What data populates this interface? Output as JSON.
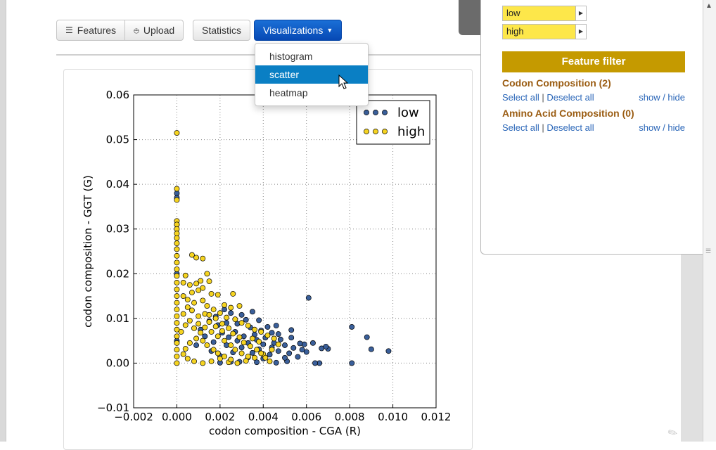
{
  "toolbar": {
    "features_label": "Features",
    "upload_label": "Upload",
    "statistics_label": "Statistics",
    "visualizations_label": "Visualizations"
  },
  "dropdown": {
    "items": [
      {
        "label": "histogram",
        "active": false
      },
      {
        "label": "scatter",
        "active": true
      },
      {
        "label": "heatmap",
        "active": false
      }
    ]
  },
  "side_panel": {
    "classes": [
      {
        "label": "low",
        "color": "#fde74a"
      },
      {
        "label": "high",
        "color": "#fde74a"
      }
    ],
    "filter_title": "Feature filter",
    "groups": [
      {
        "title": "Codon Composition (2)",
        "select_all": "Select all",
        "sep": "|",
        "deselect_all": "Deselect all",
        "show_hide": "show / hide"
      },
      {
        "title": "Amino Acid Composition (0)",
        "select_all": "Select all",
        "sep": "|",
        "deselect_all": "Deselect all",
        "show_hide": "show / hide"
      }
    ]
  },
  "chart_data": {
    "type": "scatter",
    "xlabel": "codon composition - CGA (R)",
    "ylabel": "codon composition - GGT (G)",
    "xlim": [
      -0.002,
      0.012
    ],
    "ylim": [
      -0.01,
      0.06
    ],
    "x_ticks": [
      -0.002,
      0.0,
      0.002,
      0.004,
      0.006,
      0.008,
      0.01,
      0.012
    ],
    "x_tick_labels": [
      "−0.002",
      "0.000",
      "0.002",
      "0.004",
      "0.006",
      "0.008",
      "0.010",
      "0.012"
    ],
    "y_ticks": [
      -0.01,
      0.0,
      0.01,
      0.02,
      0.03,
      0.04,
      0.05,
      0.06
    ],
    "y_tick_labels": [
      "−0.01",
      "0.00",
      "0.01",
      "0.02",
      "0.03",
      "0.04",
      "0.05",
      "0.06"
    ],
    "grid": true,
    "legend_position": "top-right",
    "series": [
      {
        "name": "low",
        "color": "#3a5f9a",
        "points": [
          [
            0.0098,
            0.0027
          ],
          [
            0.009,
            0.0031
          ],
          [
            0.0088,
            0.0058
          ],
          [
            0.0081,
            0.0081
          ],
          [
            0.0081,
            0.0
          ],
          [
            0.007,
            0.0032
          ],
          [
            0.0069,
            0.0037
          ],
          [
            0.0067,
            0.0033
          ],
          [
            0.0066,
            0.0
          ],
          [
            0.0064,
            0.0
          ],
          [
            0.0063,
            0.0045
          ],
          [
            0.0061,
            0.0146
          ],
          [
            0.006,
            0.0025
          ],
          [
            0.0059,
            0.0042
          ],
          [
            0.0058,
            0.003
          ],
          [
            0.0057,
            0.0044
          ],
          [
            0.0056,
            0.0014
          ],
          [
            0.0054,
            0.0034
          ],
          [
            0.0053,
            0.0074
          ],
          [
            0.0053,
            0.0057
          ],
          [
            0.0052,
            0.0022
          ],
          [
            0.0051,
            0.0004
          ],
          [
            0.005,
            0.004
          ],
          [
            0.005,
            0.0012
          ],
          [
            0.0048,
            0.0053
          ],
          [
            0.0047,
            0.0065
          ],
          [
            0.0047,
            0.0027
          ],
          [
            0.0046,
            0.0084
          ],
          [
            0.0046,
            0.0001
          ],
          [
            0.0045,
            0.0045
          ],
          [
            0.0044,
            0.0068
          ],
          [
            0.0044,
            0.0035
          ],
          [
            0.0043,
            0.0019
          ],
          [
            0.0042,
            0.0081
          ],
          [
            0.0041,
            0.0057
          ],
          [
            0.004,
            0.0042
          ],
          [
            0.004,
            0.001
          ],
          [
            0.0039,
            0.0073
          ],
          [
            0.0038,
            0.0096
          ],
          [
            0.0038,
            0.0031
          ],
          [
            0.0037,
            0.0052
          ],
          [
            0.0037,
            0.0002
          ],
          [
            0.0036,
            0.0064
          ],
          [
            0.0035,
            0.0115
          ],
          [
            0.0035,
            0.0023
          ],
          [
            0.0034,
            0.008
          ],
          [
            0.0033,
            0.0045
          ],
          [
            0.0033,
            0.0013
          ],
          [
            0.0032,
            0.0097
          ],
          [
            0.0031,
            0.006
          ],
          [
            0.003,
            0.0108
          ],
          [
            0.003,
            0.0035
          ],
          [
            0.0029,
            0.0003
          ],
          [
            0.0028,
            0.0088
          ],
          [
            0.0028,
            0.005
          ],
          [
            0.0027,
            0.007
          ],
          [
            0.0026,
            0.0024
          ],
          [
            0.0025,
            0.0112
          ],
          [
            0.0025,
            0.0003
          ],
          [
            0.0024,
            0.0058
          ],
          [
            0.0023,
            0.009
          ],
          [
            0.0023,
            0.004
          ],
          [
            0.0022,
            0.012
          ],
          [
            0.0021,
            0.0068
          ],
          [
            0.002,
            0.0016
          ],
          [
            0.002,
            0.0001
          ],
          [
            0.0019,
            0.0085
          ],
          [
            0.0018,
            0.0104
          ],
          [
            0.0017,
            0.0047
          ],
          [
            0.0016,
            0.0027
          ],
          [
            0.0015,
            0.0094
          ],
          [
            0.0013,
            0.006
          ],
          [
            0.0011,
            0.0075
          ],
          [
            0.0009,
            0.004
          ],
          [
            0.0,
            0.038
          ],
          [
            0.0,
            0.037
          ],
          [
            0.0,
            0.031
          ],
          [
            0.0,
            0.005
          ],
          [
            0.0,
            0.02
          ]
        ]
      },
      {
        "name": "high",
        "color": "#f5d320",
        "points": [
          [
            0.0,
            0.0515
          ],
          [
            0.0,
            0.039
          ],
          [
            0.0,
            0.0365
          ],
          [
            0.0,
            0.0318
          ],
          [
            0.0,
            0.031
          ],
          [
            0.0,
            0.03
          ],
          [
            0.0,
            0.029
          ],
          [
            0.0,
            0.028
          ],
          [
            0.0,
            0.0268
          ],
          [
            0.0,
            0.0255
          ],
          [
            0.0,
            0.024
          ],
          [
            0.0,
            0.0225
          ],
          [
            0.0,
            0.021
          ],
          [
            0.0,
            0.0195
          ],
          [
            0.0,
            0.018
          ],
          [
            0.0,
            0.0165
          ],
          [
            0.0,
            0.015
          ],
          [
            0.0,
            0.0135
          ],
          [
            0.0,
            0.012
          ],
          [
            0.0,
            0.0105
          ],
          [
            0.0,
            0.009
          ],
          [
            0.0,
            0.0075
          ],
          [
            0.0,
            0.006
          ],
          [
            0.0,
            0.0045
          ],
          [
            0.0,
            0.003
          ],
          [
            0.0,
            0.0015
          ],
          [
            0.0,
            0.0
          ],
          [
            0.0007,
            0.0242
          ],
          [
            0.0009,
            0.0236
          ],
          [
            0.0012,
            0.0234
          ],
          [
            0.0014,
            0.02
          ],
          [
            0.0011,
            0.0184
          ],
          [
            0.0009,
            0.0178
          ],
          [
            0.0004,
            0.0196
          ],
          [
            0.0003,
            0.018
          ],
          [
            0.0006,
            0.0175
          ],
          [
            0.0015,
            0.0183
          ],
          [
            0.0012,
            0.0168
          ],
          [
            0.0016,
            0.0155
          ],
          [
            0.0019,
            0.0153
          ],
          [
            0.0026,
            0.0155
          ],
          [
            0.0022,
            0.013
          ],
          [
            0.0025,
            0.0124
          ],
          [
            0.0029,
            0.0128
          ],
          [
            0.001,
            0.0163
          ],
          [
            0.0007,
            0.0158
          ],
          [
            0.0003,
            0.015
          ],
          [
            0.0005,
            0.0142
          ],
          [
            0.0008,
            0.0135
          ],
          [
            0.0012,
            0.014
          ],
          [
            0.0014,
            0.0128
          ],
          [
            0.0017,
            0.012
          ],
          [
            0.002,
            0.0112
          ],
          [
            0.0023,
            0.0102
          ],
          [
            0.0027,
            0.0098
          ],
          [
            0.003,
            0.009
          ],
          [
            0.0033,
            0.0084
          ],
          [
            0.0036,
            0.0075
          ],
          [
            0.0039,
            0.007
          ],
          [
            0.0042,
            0.0062
          ],
          [
            0.0045,
            0.0055
          ],
          [
            0.0047,
            0.0042
          ],
          [
            0.0044,
            0.003
          ],
          [
            0.004,
            0.002
          ],
          [
            0.0036,
            0.0012
          ],
          [
            0.0032,
            0.0005
          ],
          [
            0.0028,
            0.0
          ],
          [
            0.0024,
            0.0002
          ],
          [
            0.002,
            0.001
          ],
          [
            0.0016,
            0.0004
          ],
          [
            0.0012,
            0.0
          ],
          [
            0.0008,
            0.0004
          ],
          [
            0.0005,
            0.001
          ],
          [
            0.0003,
            0.002
          ],
          [
            0.0004,
            0.0032
          ],
          [
            0.0006,
            0.0045
          ],
          [
            0.0009,
            0.0055
          ],
          [
            0.0011,
            0.0068
          ],
          [
            0.0013,
            0.008
          ],
          [
            0.0015,
            0.0092
          ],
          [
            0.0018,
            0.01
          ],
          [
            0.0021,
            0.0088
          ],
          [
            0.0024,
            0.0078
          ],
          [
            0.0026,
            0.0066
          ],
          [
            0.0029,
            0.0058
          ],
          [
            0.0031,
            0.0046
          ],
          [
            0.0034,
            0.0038
          ],
          [
            0.0037,
            0.003
          ],
          [
            0.0039,
            0.0022
          ],
          [
            0.0041,
            0.0012
          ],
          [
            0.0043,
            0.0004
          ],
          [
            0.0007,
            0.0118
          ],
          [
            0.001,
            0.0105
          ],
          [
            0.0013,
            0.011
          ],
          [
            0.0016,
            0.007
          ],
          [
            0.0019,
            0.006
          ],
          [
            0.0022,
            0.005
          ],
          [
            0.0025,
            0.004
          ],
          [
            0.0027,
            0.003
          ],
          [
            0.003,
            0.0022
          ],
          [
            0.0033,
            0.0015
          ],
          [
            0.0002,
            0.007
          ],
          [
            0.0004,
            0.0085
          ],
          [
            0.0006,
            0.0095
          ],
          [
            0.0008,
            0.0078
          ],
          [
            0.001,
            0.0088
          ],
          [
            0.0012,
            0.005
          ],
          [
            0.0014,
            0.004
          ],
          [
            0.0017,
            0.003
          ],
          [
            0.0019,
            0.0022
          ],
          [
            0.0022,
            0.0015
          ],
          [
            0.0025,
            0.0008
          ],
          [
            0.0003,
            0.011
          ],
          [
            0.0005,
            0.0125
          ],
          [
            0.0015,
            0.0108
          ],
          [
            0.0018,
            0.0082
          ],
          [
            0.0021,
            0.0072
          ],
          [
            0.0035,
            0.0055
          ],
          [
            0.0038,
            0.0048
          ]
        ]
      }
    ]
  }
}
